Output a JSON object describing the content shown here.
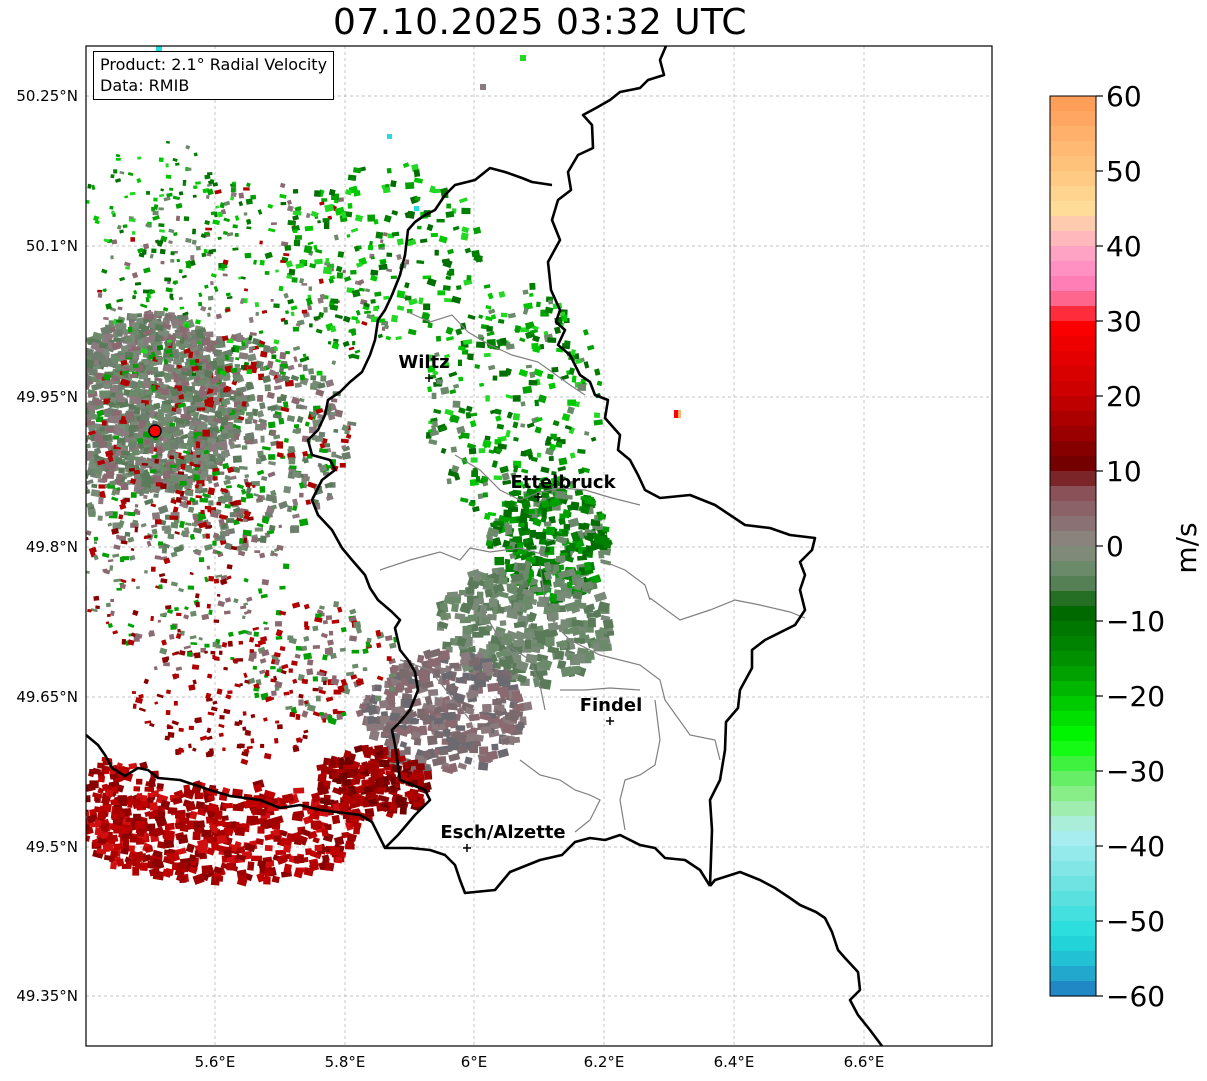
{
  "title": "07.10.2025 03:32 UTC",
  "info": {
    "product": "Product: 2.1° Radial Velocity",
    "data": "Data: RMIB"
  },
  "axes": {
    "lon_ticks": [
      "5.6°E",
      "5.8°E",
      "6°E",
      "6.2°E",
      "6.4°E",
      "6.6°E"
    ],
    "lat_ticks": [
      "50.25°N",
      "50.1°N",
      "49.95°N",
      "49.8°N",
      "49.65°N",
      "49.5°N",
      "49.35°N"
    ]
  },
  "cities": [
    {
      "name": "Wiltz"
    },
    {
      "name": "Ettelbruck"
    },
    {
      "name": "Findel"
    },
    {
      "name": "Esch/Alzette"
    }
  ],
  "colorbar": {
    "label": "m/s",
    "ticks": [
      "60",
      "50",
      "40",
      "30",
      "20",
      "10",
      "0",
      "−10",
      "−20",
      "−30",
      "−40",
      "−50",
      "−60"
    ],
    "min": -60,
    "max": 60
  },
  "colors": {
    "border": "#000000",
    "admin": "#808080",
    "radar_site": "#ff0000"
  }
}
